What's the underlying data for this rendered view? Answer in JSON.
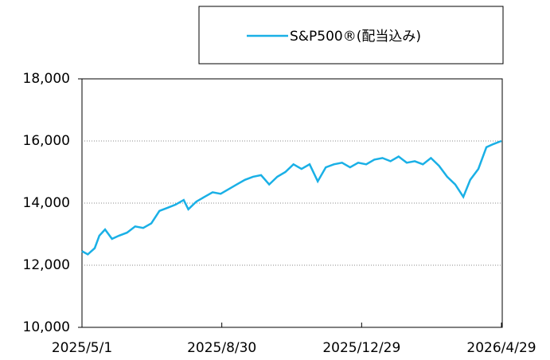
{
  "chart_data": {
    "type": "line",
    "x": [
      "2025/5/1",
      "2025/5/6",
      "2025/5/12",
      "2025/5/16",
      "2025/5/21",
      "2025/5/27",
      "2025/6/2",
      "2025/6/9",
      "2025/6/16",
      "2025/6/23",
      "2025/6/30",
      "2025/7/7",
      "2025/7/14",
      "2025/7/21",
      "2025/7/28",
      "2025/8/1",
      "2025/8/8",
      "2025/8/15",
      "2025/8/22",
      "2025/8/29",
      "2025/9/5",
      "2025/9/12",
      "2025/9/19",
      "2025/9/26",
      "2025/10/3",
      "2025/10/10",
      "2025/10/17",
      "2025/10/24",
      "2025/10/31",
      "2025/11/7",
      "2025/11/14",
      "2025/11/21",
      "2025/11/28",
      "2025/12/5",
      "2025/12/12",
      "2025/12/19",
      "2025/12/26",
      "2026/1/2",
      "2026/1/9",
      "2026/1/16",
      "2026/1/23",
      "2026/1/30",
      "2026/2/6",
      "2026/2/13",
      "2026/2/20",
      "2026/2/27",
      "2026/3/6",
      "2026/3/13",
      "2026/3/20",
      "2026/3/27",
      "2026/4/2",
      "2026/4/9",
      "2026/4/16",
      "2026/4/22",
      "2026/4/29"
    ],
    "series": [
      {
        "name": "S&P500®(配当込み)",
        "color": "#1ab0e6",
        "values": [
          12450,
          12350,
          12550,
          12950,
          13150,
          12850,
          12950,
          13050,
          13250,
          13200,
          13350,
          13750,
          13850,
          13950,
          14100,
          13800,
          14050,
          14200,
          14350,
          14300,
          14450,
          14600,
          14750,
          14850,
          14900,
          14600,
          14850,
          15000,
          15250,
          15100,
          15250,
          14700,
          15150,
          15250,
          15300,
          15150,
          15300,
          15250,
          15400,
          15450,
          15350,
          15500,
          15300,
          15350,
          15250,
          15450,
          15200,
          14850,
          14600,
          14200,
          14750,
          15100,
          15800,
          15900,
          16000
        ]
      }
    ],
    "xlim": [
      "2025/5/1",
      "2026/4/29"
    ],
    "xticks": [
      "2025/5/1",
      "2025/8/30",
      "2025/12/29",
      "2026/4/29"
    ],
    "ylim": [
      10000,
      18000
    ],
    "yticks": [
      {
        "value": 10000,
        "label": "10,000"
      },
      {
        "value": 12000,
        "label": "12,000"
      },
      {
        "value": 14000,
        "label": "14,000"
      },
      {
        "value": 16000,
        "label": "16,000"
      },
      {
        "value": 18000,
        "label": "18,000"
      }
    ],
    "grid": true
  }
}
